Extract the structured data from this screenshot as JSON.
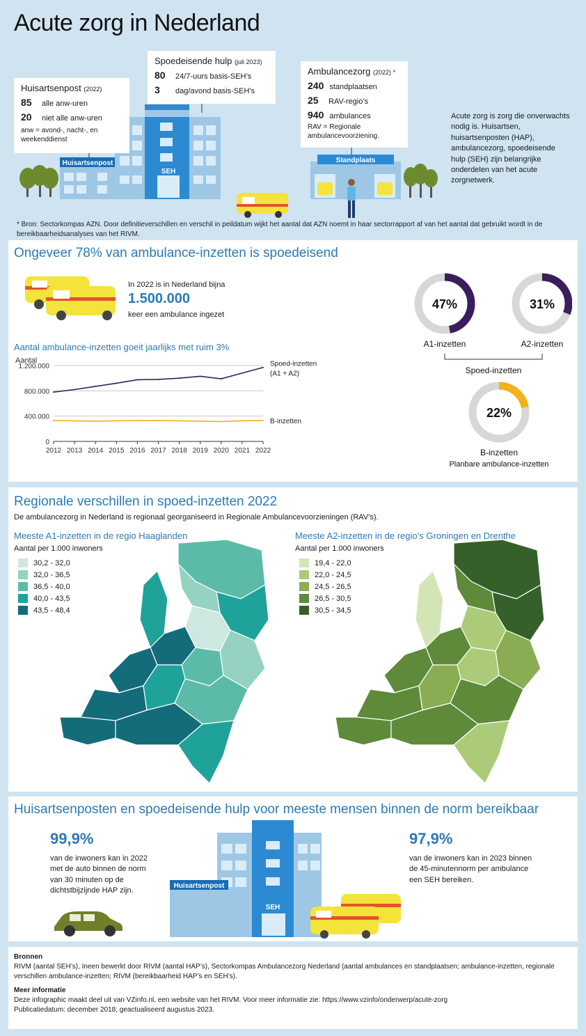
{
  "title": "Acute zorg in Nederland",
  "hap_box": {
    "title": "Huisartsenpost",
    "year": "(2022)",
    "rows": [
      {
        "n": "85",
        "t": "alle anw-uren"
      },
      {
        "n": "20",
        "t": "niet alle anw-uren"
      }
    ],
    "note": "anw = avond-, nacht-, en weekenddienst"
  },
  "seh_box": {
    "title": "Spoedeisende hulp",
    "year": "(juli 2023)",
    "rows": [
      {
        "n": "80",
        "t": "24/7-uurs basis-SEH’s"
      },
      {
        "n": "3",
        "t": "dag/avond basis-SEH’s"
      }
    ]
  },
  "amb_box": {
    "title": "Ambulancezorg",
    "year": "(2022) *",
    "rows": [
      {
        "n": "240",
        "t": "standplaatsen"
      },
      {
        "n": "25",
        "t": "RAV-regio’s"
      },
      {
        "n": "940",
        "t": "ambulances"
      }
    ],
    "note": "RAV = Regionale ambulancevoorziening."
  },
  "intro": "Acute zorg is zorg die onverwachts nodig is. Huisartsen, huisartsenposten (HAP), ambulancezorg, spoedeisende hulp (SEH) zijn belangrijke onderdelen van het acute zorgnetwerk.",
  "building_labels": {
    "hap": "Huisartsenpost",
    "seh": "SEH",
    "standplaats": "Standplaats"
  },
  "footnote": "* Bron: Sectorkompas AZN. Door definitieverschillen en verschil in peildatum wijkt het aantal dat AZN noemt in haar sectorrapport af van het aantal dat gebruikt wordt in de bereikbaarheidsanalyses van het RIVM.",
  "section1": {
    "title": "Ongeveer 78% van ambulance-inzetten is spoedeisend",
    "lead1": "In 2022  is in Nederland bijna",
    "big": "1.500.000",
    "lead2": "keer een ambulance ingezet",
    "chart_title": "Aantal ambulance-inzetten goeit jaarlijks met ruim 3%",
    "ylabel": "Aantal",
    "donuts": [
      {
        "pct": "47%",
        "value": 47,
        "label": "A1-inzetten",
        "color": "#3b1d5c"
      },
      {
        "pct": "31%",
        "value": 31,
        "label": "A2-inzetten",
        "color": "#3b1d5c"
      },
      {
        "pct": "22%",
        "value": 22,
        "label": "B-inzetten",
        "sub": "Planbare ambulance-inzetten",
        "color": "#f3b11b"
      }
    ],
    "bracket_label": "Spoed-inzetten"
  },
  "chart_data": {
    "type": "line",
    "title": "Aantal ambulance-inzetten goeit jaarlijks met ruim 3%",
    "ylabel": "Aantal",
    "x": [
      2012,
      2013,
      2014,
      2015,
      2016,
      2017,
      2018,
      2019,
      2020,
      2021,
      2022
    ],
    "ylim": [
      0,
      1200000
    ],
    "yticks": [
      "0",
      "400.000",
      "800.000",
      "1.200.000"
    ],
    "series": [
      {
        "name": "Spoed-inzetten (A1 + A2)",
        "name_l1": "Spoed-inzetten",
        "name_l2": "(A1 + A2)",
        "color": "#3b1d5c",
        "values": [
          780000,
          820000,
          870000,
          920000,
          975000,
          980000,
          1000000,
          1030000,
          990000,
          1080000,
          1170000
        ]
      },
      {
        "name": "B-inzetten",
        "color": "#f3b11b",
        "values": [
          330000,
          325000,
          320000,
          325000,
          330000,
          330000,
          325000,
          320000,
          315000,
          325000,
          330000
        ]
      }
    ]
  },
  "section2": {
    "title": "Regionale verschillen in spoed-inzetten 2022",
    "intro": "De ambulancezorg in Nederland is regionaal georganiseerd in Regionale Ambulancevoorzieningen (RAV’s).",
    "map1": {
      "title": "Meeste A1-inzetten in de regio Haaglanden",
      "legend_title": "Aantal per 1.000 inwoners",
      "legend": [
        {
          "t": "30,2 - 32,0",
          "c": "#cde8e0"
        },
        {
          "t": "32,0 - 36,5",
          "c": "#95d2c2"
        },
        {
          "t": "36,5 - 40,0",
          "c": "#5bbba8"
        },
        {
          "t": "40,0 - 43,5",
          "c": "#1fa29a"
        },
        {
          "t": "43,5 - 48,4",
          "c": "#146c7a"
        }
      ]
    },
    "map2": {
      "title": "Meeste A2-inzetten in de regio’s Groningen en Drenthe",
      "legend_title": "Aantal per 1.000 inwoners",
      "legend": [
        {
          "t": "19,4 - 22,0",
          "c": "#d3e5b4"
        },
        {
          "t": "22,0 - 24,5",
          "c": "#abcb78"
        },
        {
          "t": "24,5 - 26,5",
          "c": "#8aad54"
        },
        {
          "t": "26,5 - 30,5",
          "c": "#5e8a3a"
        },
        {
          "t": "30,5 - 34,5",
          "c": "#35602a"
        }
      ]
    }
  },
  "section3": {
    "title": "Huisartsenposten en spoedeisende hulp voor meeste mensen binnen de norm bereikbaar",
    "left_pct": "99,9%",
    "left_text": "van de inwoners kan in 2022 met de auto binnen de norm van 30 minuten op de dichtstbijzijnde HAP zijn.",
    "right_pct": "97,9%",
    "right_text": "van de inwoners kan in 2023 binnen de 45-minutennorm per ambulance een SEH bereiken."
  },
  "sources": {
    "h1": "Bronnen",
    "t1": "RIVM (aantal SEH’s), Ineen bewerkt door RIVM (aantal HAP’s), Sectorkompas Ambulancezorg Nederland (aantal ambulances en standplaatsen; ambulance-inzetten, regionale verschillen ambulance-inzetten; RIVM (bereikbaarheid HAP’s en SEH’s).",
    "h2": "Meer informatie",
    "t2": "Deze infographic maakt deel uit van VZinfo.nl, een website van het RIVM. Voor meer informatie zie: https://www.vzinfo/onderwerp/acute-zorg",
    "t3": "Publicatiedatum: december 2018; geactualiseerd augustus 2023."
  }
}
